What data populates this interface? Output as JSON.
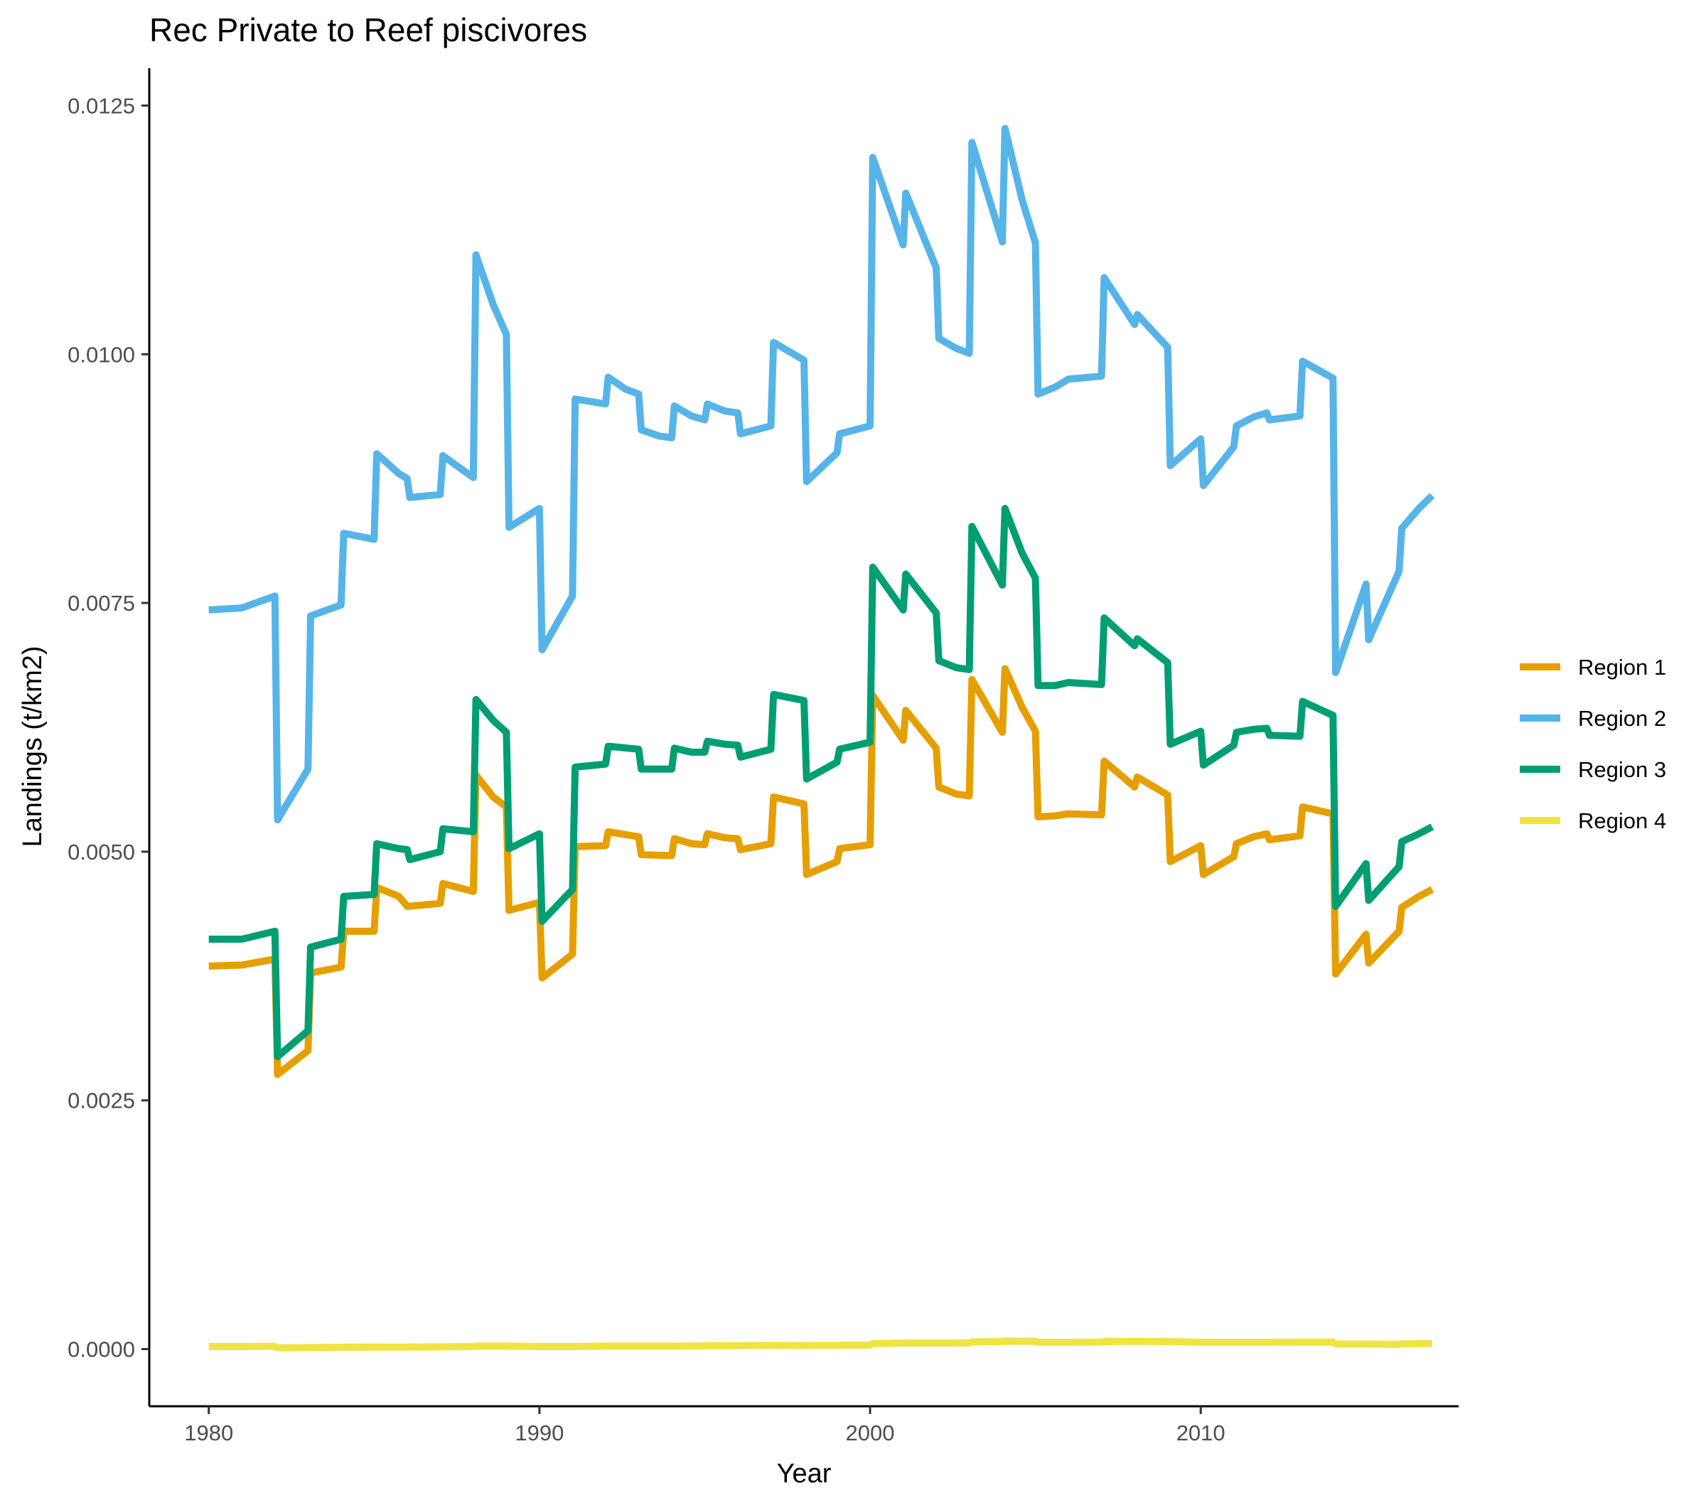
{
  "chart_data": {
    "type": "line",
    "title": "Rec Private to Reef piscivores",
    "xlabel": "Year",
    "ylabel": "Landings (t/km2)",
    "xlim": [
      1978.2,
      2017.8
    ],
    "ylim": [
      -0.000575,
      0.012875
    ],
    "x_ticks": [
      1980,
      1990,
      2000,
      2010
    ],
    "x_tick_labels": [
      "1980",
      "1990",
      "2000",
      "2010"
    ],
    "y_ticks": [
      0,
      0.0025,
      0.005,
      0.0075,
      0.01,
      0.0125
    ],
    "y_tick_labels": [
      "0.0000",
      "0.0025",
      "0.0050",
      "0.0075",
      "0.0100",
      "0.0125"
    ],
    "grid": false,
    "legend_position": "right",
    "series": [
      {
        "name": "Region 1",
        "color": "#E69F00",
        "points": [
          [
            1980,
            0.00385
          ],
          [
            1981,
            0.00386
          ],
          [
            1982,
            0.00392
          ],
          [
            1982.08,
            0.00276
          ],
          [
            1983,
            0.003
          ],
          [
            1983.08,
            0.00378
          ],
          [
            1984,
            0.00384
          ],
          [
            1984.08,
            0.0042
          ],
          [
            1985,
            0.0042
          ],
          [
            1985.08,
            0.00464
          ],
          [
            1985.75,
            0.00455
          ],
          [
            1986,
            0.00445
          ],
          [
            1987,
            0.00448
          ],
          [
            1987.08,
            0.00468
          ],
          [
            1988,
            0.0046
          ],
          [
            1988.08,
            0.00577
          ],
          [
            1988.6,
            0.00555
          ],
          [
            1989,
            0.00545
          ],
          [
            1989.08,
            0.00441
          ],
          [
            1990,
            0.00449
          ],
          [
            1990.08,
            0.00373
          ],
          [
            1991,
            0.00397
          ],
          [
            1991.08,
            0.00505
          ],
          [
            1992,
            0.00506
          ],
          [
            1992.08,
            0.0052
          ],
          [
            1993,
            0.00515
          ],
          [
            1993.08,
            0.00497
          ],
          [
            1994,
            0.00496
          ],
          [
            1994.08,
            0.00513
          ],
          [
            1994.6,
            0.00508
          ],
          [
            1995,
            0.00507
          ],
          [
            1995.08,
            0.00518
          ],
          [
            1995.6,
            0.00514
          ],
          [
            1996,
            0.00513
          ],
          [
            1996.08,
            0.00502
          ],
          [
            1997,
            0.00508
          ],
          [
            1997.08,
            0.00555
          ],
          [
            1998,
            0.00548
          ],
          [
            1998.08,
            0.00477
          ],
          [
            1999,
            0.0049
          ],
          [
            1999.08,
            0.00503
          ],
          [
            2000,
            0.00507
          ],
          [
            2000.08,
            0.00657
          ],
          [
            2001,
            0.00612
          ],
          [
            2001.08,
            0.00642
          ],
          [
            2002,
            0.00604
          ],
          [
            2002.08,
            0.00565
          ],
          [
            2002.6,
            0.00558
          ],
          [
            2003,
            0.00556
          ],
          [
            2003.08,
            0.00673
          ],
          [
            2004,
            0.0062
          ],
          [
            2004.08,
            0.00684
          ],
          [
            2004.6,
            0.00645
          ],
          [
            2005,
            0.00621
          ],
          [
            2005.08,
            0.00535
          ],
          [
            2005.6,
            0.00536
          ],
          [
            2006,
            0.00538
          ],
          [
            2007,
            0.00537
          ],
          [
            2007.08,
            0.00591
          ],
          [
            2008,
            0.00565
          ],
          [
            2008.08,
            0.00575
          ],
          [
            2009,
            0.00557
          ],
          [
            2009.08,
            0.0049
          ],
          [
            2010,
            0.00506
          ],
          [
            2010.08,
            0.00477
          ],
          [
            2011,
            0.00495
          ],
          [
            2011.08,
            0.00508
          ],
          [
            2011.6,
            0.00515
          ],
          [
            2012,
            0.00518
          ],
          [
            2012.08,
            0.00512
          ],
          [
            2013,
            0.00516
          ],
          [
            2013.08,
            0.00545
          ],
          [
            2014,
            0.00538
          ],
          [
            2014.08,
            0.00377
          ],
          [
            2015,
            0.00417
          ],
          [
            2015.08,
            0.00388
          ],
          [
            2016,
            0.0042
          ],
          [
            2016.08,
            0.00444
          ],
          [
            2016.6,
            0.00455
          ],
          [
            2017,
            0.00462
          ]
        ]
      },
      {
        "name": "Region 2",
        "color": "#56B4E9",
        "points": [
          [
            1980,
            0.00743
          ],
          [
            1981,
            0.00745
          ],
          [
            1982,
            0.00757
          ],
          [
            1982.08,
            0.00532
          ],
          [
            1983,
            0.00583
          ],
          [
            1983.08,
            0.00737
          ],
          [
            1984,
            0.00748
          ],
          [
            1984.08,
            0.0082
          ],
          [
            1985,
            0.00814
          ],
          [
            1985.08,
            0.009
          ],
          [
            1985.75,
            0.0088
          ],
          [
            1986,
            0.00875
          ],
          [
            1986.08,
            0.00856
          ],
          [
            1987,
            0.00859
          ],
          [
            1987.08,
            0.00898
          ],
          [
            1988,
            0.00876
          ],
          [
            1988.08,
            0.011
          ],
          [
            1988.6,
            0.0105
          ],
          [
            1989,
            0.0102
          ],
          [
            1989.08,
            0.00826
          ],
          [
            1990,
            0.00845
          ],
          [
            1990.08,
            0.00703
          ],
          [
            1991,
            0.00757
          ],
          [
            1991.08,
            0.00955
          ],
          [
            1992,
            0.0095
          ],
          [
            1992.08,
            0.00977
          ],
          [
            1992.6,
            0.00965
          ],
          [
            1993,
            0.0096
          ],
          [
            1993.08,
            0.00924
          ],
          [
            1993.6,
            0.00918
          ],
          [
            1994,
            0.00916
          ],
          [
            1994.08,
            0.00948
          ],
          [
            1994.6,
            0.00938
          ],
          [
            1995,
            0.00934
          ],
          [
            1995.08,
            0.0095
          ],
          [
            1995.6,
            0.00943
          ],
          [
            1996,
            0.00941
          ],
          [
            1996.08,
            0.0092
          ],
          [
            1997,
            0.00928
          ],
          [
            1997.08,
            0.01012
          ],
          [
            1998,
            0.00994
          ],
          [
            1998.08,
            0.00872
          ],
          [
            1999,
            0.00901
          ],
          [
            1999.08,
            0.0092
          ],
          [
            2000,
            0.00928
          ],
          [
            2000.08,
            0.01198
          ],
          [
            2001,
            0.0111
          ],
          [
            2001.08,
            0.01162
          ],
          [
            2002,
            0.01087
          ],
          [
            2002.08,
            0.01016
          ],
          [
            2002.6,
            0.01006
          ],
          [
            2003,
            0.01001
          ],
          [
            2003.08,
            0.01213
          ],
          [
            2004,
            0.01113
          ],
          [
            2004.08,
            0.01227
          ],
          [
            2004.6,
            0.01155
          ],
          [
            2005,
            0.01112
          ],
          [
            2005.08,
            0.0096
          ],
          [
            2005.6,
            0.00967
          ],
          [
            2006,
            0.00975
          ],
          [
            2007,
            0.00978
          ],
          [
            2007.08,
            0.01077
          ],
          [
            2008,
            0.0103
          ],
          [
            2008.08,
            0.0104
          ],
          [
            2009,
            0.01007
          ],
          [
            2009.08,
            0.00888
          ],
          [
            2010,
            0.00915
          ],
          [
            2010.08,
            0.00868
          ],
          [
            2011,
            0.00907
          ],
          [
            2011.08,
            0.00928
          ],
          [
            2011.6,
            0.00937
          ],
          [
            2012,
            0.00941
          ],
          [
            2012.08,
            0.00934
          ],
          [
            2013,
            0.00938
          ],
          [
            2013.08,
            0.00993
          ],
          [
            2014,
            0.00976
          ],
          [
            2014.08,
            0.0068
          ],
          [
            2015,
            0.00769
          ],
          [
            2015.08,
            0.00713
          ],
          [
            2016,
            0.00782
          ],
          [
            2016.08,
            0.00825
          ],
          [
            2016.6,
            0.00845
          ],
          [
            2017,
            0.00858
          ]
        ]
      },
      {
        "name": "Region 3",
        "color": "#009E73",
        "points": [
          [
            1980,
            0.00412
          ],
          [
            1981,
            0.00412
          ],
          [
            1982,
            0.0042
          ],
          [
            1982.08,
            0.00294
          ],
          [
            1983,
            0.0032
          ],
          [
            1983.08,
            0.00404
          ],
          [
            1984,
            0.00412
          ],
          [
            1984.08,
            0.00455
          ],
          [
            1985,
            0.00457
          ],
          [
            1985.08,
            0.00508
          ],
          [
            1985.75,
            0.00503
          ],
          [
            1986,
            0.00502
          ],
          [
            1986.08,
            0.00492
          ],
          [
            1987,
            0.005
          ],
          [
            1987.08,
            0.00523
          ],
          [
            1988,
            0.0052
          ],
          [
            1988.08,
            0.00653
          ],
          [
            1988.6,
            0.00632
          ],
          [
            1989,
            0.0062
          ],
          [
            1989.08,
            0.00503
          ],
          [
            1990,
            0.00518
          ],
          [
            1990.08,
            0.0043
          ],
          [
            1991,
            0.00462
          ],
          [
            1991.08,
            0.00585
          ],
          [
            1992,
            0.00588
          ],
          [
            1992.08,
            0.00606
          ],
          [
            1993,
            0.00603
          ],
          [
            1993.08,
            0.00583
          ],
          [
            1994,
            0.00583
          ],
          [
            1994.08,
            0.00604
          ],
          [
            1994.6,
            0.006
          ],
          [
            1995,
            0.006
          ],
          [
            1995.08,
            0.00611
          ],
          [
            1995.6,
            0.00608
          ],
          [
            1996,
            0.00607
          ],
          [
            1996.08,
            0.00595
          ],
          [
            1997,
            0.00603
          ],
          [
            1997.08,
            0.00658
          ],
          [
            1998,
            0.00652
          ],
          [
            1998.08,
            0.00573
          ],
          [
            1999,
            0.0059
          ],
          [
            1999.08,
            0.00603
          ],
          [
            2000,
            0.0061
          ],
          [
            2000.08,
            0.00786
          ],
          [
            2001,
            0.00743
          ],
          [
            2001.08,
            0.00779
          ],
          [
            2002,
            0.0074
          ],
          [
            2002.08,
            0.00692
          ],
          [
            2002.6,
            0.00685
          ],
          [
            2003,
            0.00683
          ],
          [
            2003.08,
            0.00827
          ],
          [
            2004,
            0.00768
          ],
          [
            2004.08,
            0.00845
          ],
          [
            2004.6,
            0.008
          ],
          [
            2005,
            0.00775
          ],
          [
            2005.08,
            0.00667
          ],
          [
            2005.6,
            0.00667
          ],
          [
            2006,
            0.0067
          ],
          [
            2007,
            0.00668
          ],
          [
            2007.08,
            0.00735
          ],
          [
            2008,
            0.00707
          ],
          [
            2008.08,
            0.00714
          ],
          [
            2009,
            0.0069
          ],
          [
            2009.08,
            0.00608
          ],
          [
            2010,
            0.00621
          ],
          [
            2010.08,
            0.00587
          ],
          [
            2011,
            0.00607
          ],
          [
            2011.08,
            0.0062
          ],
          [
            2011.6,
            0.00623
          ],
          [
            2012,
            0.00624
          ],
          [
            2012.08,
            0.00617
          ],
          [
            2013,
            0.00616
          ],
          [
            2013.08,
            0.00651
          ],
          [
            2014,
            0.00637
          ],
          [
            2014.08,
            0.00445
          ],
          [
            2015,
            0.00488
          ],
          [
            2015.08,
            0.00451
          ],
          [
            2016,
            0.00485
          ],
          [
            2016.08,
            0.0051
          ],
          [
            2016.6,
            0.00518
          ],
          [
            2017,
            0.00525
          ]
        ]
      },
      {
        "name": "Region 4",
        "color": "#F0E442",
        "points": [
          [
            1980,
            2.5e-05
          ],
          [
            1981,
            2.5e-05
          ],
          [
            1982,
            2.7e-05
          ],
          [
            1982.08,
            1.2e-05
          ],
          [
            1983,
            1.5e-05
          ],
          [
            1984,
            1.8e-05
          ],
          [
            1985,
            2e-05
          ],
          [
            1986,
            2e-05
          ],
          [
            1987,
            2.2e-05
          ],
          [
            1988,
            2.5e-05
          ],
          [
            1988.08,
            3e-05
          ],
          [
            1989,
            3e-05
          ],
          [
            1990,
            2.5e-05
          ],
          [
            1991,
            2.5e-05
          ],
          [
            1992,
            3e-05
          ],
          [
            1993,
            3e-05
          ],
          [
            1994,
            3e-05
          ],
          [
            1995,
            3.2e-05
          ],
          [
            1996,
            3.4e-05
          ],
          [
            1997,
            3.7e-05
          ],
          [
            1998,
            3.5e-05
          ],
          [
            1999,
            3.8e-05
          ],
          [
            2000,
            4e-05
          ],
          [
            2000.08,
            5.5e-05
          ],
          [
            2001,
            6e-05
          ],
          [
            2002,
            6e-05
          ],
          [
            2003,
            6.2e-05
          ],
          [
            2003.08,
            7.2e-05
          ],
          [
            2004,
            7.5e-05
          ],
          [
            2004.08,
            8e-05
          ],
          [
            2005,
            7.8e-05
          ],
          [
            2005.08,
            6.8e-05
          ],
          [
            2006,
            6.8e-05
          ],
          [
            2007,
            7e-05
          ],
          [
            2007.08,
            7.5e-05
          ],
          [
            2008,
            7.8e-05
          ],
          [
            2009,
            7.5e-05
          ],
          [
            2010,
            6.8e-05
          ],
          [
            2011,
            6.8e-05
          ],
          [
            2012,
            6.8e-05
          ],
          [
            2013,
            7e-05
          ],
          [
            2014,
            7e-05
          ],
          [
            2014.08,
            5e-05
          ],
          [
            2015,
            5e-05
          ],
          [
            2016,
            4.8e-05
          ],
          [
            2016.08,
            5.2e-05
          ],
          [
            2017,
            5.5e-05
          ]
        ]
      }
    ]
  }
}
